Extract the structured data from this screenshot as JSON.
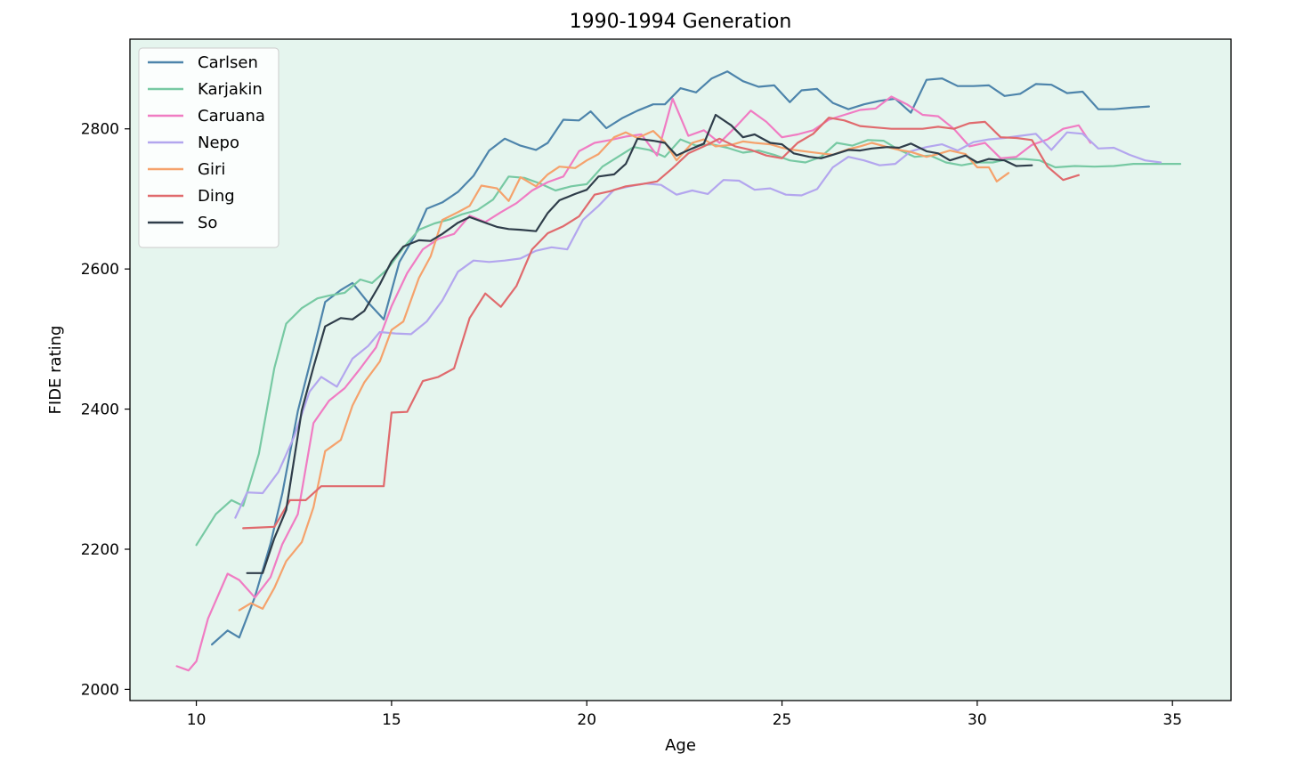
{
  "chart_data": {
    "type": "line",
    "title": "1990-1994 Generation",
    "xlabel": "Age",
    "ylabel": "FIDE rating",
    "xlim": [
      8.3,
      36.5
    ],
    "ylim": [
      1984,
      2928
    ],
    "xticks": [
      10,
      15,
      20,
      25,
      30,
      35
    ],
    "yticks": [
      2000,
      2200,
      2400,
      2600,
      2800
    ],
    "grid": false,
    "legend": "top-left",
    "plot_background": "#e5f5ee",
    "series": [
      {
        "name": "Carlsen",
        "color": "#4d84ab",
        "x": [
          10.4,
          10.8,
          11.1,
          11.5,
          11.9,
          12.2,
          12.6,
          13.0,
          13.3,
          13.7,
          14.0,
          14.4,
          14.8,
          15.2,
          15.6,
          15.9,
          16.3,
          16.7,
          17.1,
          17.5,
          17.9,
          18.3,
          18.7,
          19.0,
          19.4,
          19.8,
          20.1,
          20.5,
          20.9,
          21.3,
          21.7,
          22.0,
          22.4,
          22.8,
          23.2,
          23.6,
          24.0,
          24.4,
          24.8,
          25.2,
          25.5,
          25.9,
          26.3,
          26.7,
          27.1,
          27.5,
          27.9,
          28.3,
          28.7,
          29.1,
          29.5,
          29.9,
          30.3,
          30.7,
          31.1,
          31.5,
          31.9,
          32.3,
          32.7,
          33.1,
          33.5,
          33.9,
          34.4
        ],
        "y": [
          2064,
          2084,
          2074,
          2132,
          2208,
          2279,
          2397,
          2485,
          2553,
          2570,
          2580,
          2552,
          2528,
          2610,
          2648,
          2686,
          2695,
          2710,
          2733,
          2769,
          2786,
          2776,
          2770,
          2780,
          2813,
          2812,
          2825,
          2801,
          2815,
          2826,
          2835,
          2835,
          2858,
          2852,
          2872,
          2882,
          2868,
          2860,
          2862,
          2838,
          2855,
          2857,
          2837,
          2828,
          2835,
          2840,
          2843,
          2823,
          2870,
          2872,
          2861,
          2861,
          2862,
          2847,
          2850,
          2864,
          2863,
          2851,
          2853,
          2828,
          2828,
          2830,
          2832
        ]
      },
      {
        "name": "Karjakin",
        "color": "#77c9a3",
        "x": [
          10.0,
          10.5,
          10.9,
          11.2,
          11.6,
          12.0,
          12.3,
          12.7,
          13.1,
          13.4,
          13.8,
          14.2,
          14.5,
          14.9,
          15.3,
          15.7,
          16.1,
          16.5,
          16.8,
          17.2,
          17.6,
          18.0,
          18.4,
          18.8,
          19.2,
          19.6,
          20.0,
          20.4,
          20.8,
          21.2,
          21.6,
          22.0,
          22.4,
          22.8,
          23.2,
          23.6,
          24.0,
          24.4,
          24.8,
          25.2,
          25.6,
          26.0,
          26.4,
          26.8,
          27.2,
          27.6,
          28.0,
          28.4,
          28.8,
          29.2,
          29.6,
          30.0,
          30.4,
          30.8,
          31.2,
          31.6,
          32.0,
          32.5,
          33.0,
          33.5,
          34.0,
          34.5,
          35.2
        ],
        "y": [
          2206,
          2250,
          2270,
          2262,
          2336,
          2459,
          2522,
          2544,
          2558,
          2562,
          2566,
          2585,
          2580,
          2600,
          2630,
          2656,
          2665,
          2671,
          2678,
          2684,
          2699,
          2732,
          2730,
          2722,
          2712,
          2718,
          2721,
          2746,
          2760,
          2774,
          2770,
          2760,
          2785,
          2776,
          2778,
          2773,
          2766,
          2769,
          2763,
          2755,
          2752,
          2760,
          2780,
          2776,
          2784,
          2783,
          2770,
          2760,
          2762,
          2752,
          2748,
          2752,
          2752,
          2757,
          2757,
          2755,
          2745,
          2747,
          2746,
          2747,
          2750,
          2750,
          2750
        ]
      },
      {
        "name": "Caruana",
        "color": "#f07cc3",
        "x": [
          9.5,
          9.8,
          10.0,
          10.3,
          10.8,
          11.1,
          11.5,
          11.9,
          12.2,
          12.6,
          13.0,
          13.4,
          13.8,
          14.2,
          14.6,
          15.0,
          15.4,
          15.8,
          16.2,
          16.6,
          17.0,
          17.4,
          17.8,
          18.2,
          18.6,
          19.0,
          19.4,
          19.8,
          20.2,
          20.6,
          21.0,
          21.4,
          21.8,
          22.2,
          22.6,
          23.0,
          23.4,
          23.8,
          24.2,
          24.6,
          25.0,
          25.4,
          25.8,
          26.2,
          26.6,
          27.0,
          27.4,
          27.8,
          28.2,
          28.6,
          29.0,
          29.4,
          29.8,
          30.2,
          30.6,
          31.0,
          31.4,
          31.8,
          32.2,
          32.6,
          32.9
        ],
        "y": [
          2033,
          2027,
          2040,
          2101,
          2165,
          2156,
          2131,
          2160,
          2207,
          2250,
          2380,
          2412,
          2430,
          2458,
          2488,
          2547,
          2594,
          2628,
          2643,
          2650,
          2676,
          2667,
          2681,
          2694,
          2712,
          2724,
          2732,
          2768,
          2780,
          2784,
          2789,
          2792,
          2762,
          2843,
          2790,
          2798,
          2780,
          2802,
          2826,
          2810,
          2788,
          2792,
          2798,
          2813,
          2820,
          2827,
          2829,
          2846,
          2835,
          2820,
          2818,
          2800,
          2775,
          2780,
          2758,
          2760,
          2777,
          2785,
          2800,
          2805,
          2780
        ]
      },
      {
        "name": "Nepo",
        "color": "#b3a6ee",
        "x": [
          11.0,
          11.3,
          11.7,
          12.1,
          12.5,
          12.9,
          13.2,
          13.6,
          14.0,
          14.4,
          14.7,
          15.1,
          15.5,
          15.9,
          16.3,
          16.7,
          17.1,
          17.5,
          17.9,
          18.3,
          18.7,
          19.1,
          19.5,
          19.9,
          20.3,
          20.7,
          21.1,
          21.5,
          21.9,
          22.3,
          22.7,
          23.1,
          23.5,
          23.9,
          24.3,
          24.7,
          25.1,
          25.5,
          25.9,
          26.3,
          26.7,
          27.1,
          27.5,
          27.9,
          28.3,
          28.7,
          29.1,
          29.5,
          29.9,
          30.3,
          30.7,
          31.1,
          31.5,
          31.9,
          32.3,
          32.7,
          33.1,
          33.5,
          33.9,
          34.3,
          34.7
        ],
        "y": [
          2245,
          2281,
          2280,
          2310,
          2360,
          2425,
          2446,
          2432,
          2472,
          2490,
          2510,
          2508,
          2507,
          2525,
          2555,
          2596,
          2612,
          2610,
          2612,
          2615,
          2626,
          2631,
          2628,
          2670,
          2690,
          2713,
          2718,
          2722,
          2720,
          2706,
          2712,
          2707,
          2727,
          2726,
          2713,
          2715,
          2706,
          2705,
          2714,
          2745,
          2760,
          2755,
          2748,
          2750,
          2768,
          2774,
          2778,
          2769,
          2781,
          2785,
          2787,
          2790,
          2793,
          2770,
          2795,
          2793,
          2772,
          2773,
          2763,
          2755,
          2752
        ]
      },
      {
        "name": "Giri",
        "color": "#f5a26c",
        "x": [
          11.1,
          11.4,
          11.7,
          12.0,
          12.3,
          12.7,
          13.0,
          13.3,
          13.7,
          14.0,
          14.3,
          14.7,
          15.0,
          15.3,
          15.7,
          16.0,
          16.3,
          16.7,
          17.0,
          17.3,
          17.7,
          18.0,
          18.3,
          18.7,
          19.0,
          19.3,
          19.7,
          20.0,
          20.3,
          20.7,
          21.0,
          21.3,
          21.7,
          22.0,
          22.3,
          22.7,
          23.0,
          23.3,
          23.7,
          24.0,
          24.3,
          24.7,
          25.0,
          25.3,
          25.7,
          26.0,
          26.3,
          26.7,
          27.0,
          27.3,
          27.7,
          28.0,
          28.3,
          28.7,
          29.0,
          29.3,
          29.7,
          30.0,
          30.3,
          30.5,
          30.8
        ],
        "y": [
          2113,
          2123,
          2115,
          2145,
          2183,
          2210,
          2260,
          2340,
          2356,
          2405,
          2438,
          2468,
          2513,
          2525,
          2587,
          2618,
          2670,
          2681,
          2690,
          2719,
          2715,
          2697,
          2731,
          2718,
          2735,
          2746,
          2744,
          2755,
          2764,
          2788,
          2795,
          2787,
          2797,
          2781,
          2755,
          2780,
          2785,
          2775,
          2777,
          2782,
          2780,
          2778,
          2773,
          2770,
          2767,
          2765,
          2763,
          2771,
          2775,
          2780,
          2774,
          2770,
          2767,
          2760,
          2764,
          2769,
          2764,
          2745,
          2745,
          2725,
          2737
        ]
      },
      {
        "name": "Ding",
        "color": "#e06a6d",
        "x": [
          11.2,
          11.6,
          12.0,
          12.4,
          12.8,
          13.2,
          13.6,
          14.0,
          14.4,
          14.8,
          15.0,
          15.4,
          15.8,
          16.2,
          16.6,
          17.0,
          17.4,
          17.8,
          18.2,
          18.6,
          19.0,
          19.4,
          19.8,
          20.2,
          20.6,
          21.0,
          21.4,
          21.8,
          22.2,
          22.6,
          23.0,
          23.4,
          23.8,
          24.2,
          24.6,
          25.0,
          25.4,
          25.8,
          26.2,
          26.6,
          27.0,
          27.4,
          27.8,
          28.2,
          28.6,
          29.0,
          29.4,
          29.8,
          30.2,
          30.6,
          31.0,
          31.4,
          31.8,
          32.2,
          32.6
        ],
        "y": [
          2230,
          2231,
          2232,
          2270,
          2270,
          2290,
          2290,
          2290,
          2290,
          2290,
          2395,
          2396,
          2440,
          2446,
          2458,
          2530,
          2565,
          2546,
          2576,
          2628,
          2651,
          2661,
          2675,
          2706,
          2711,
          2718,
          2721,
          2725,
          2744,
          2765,
          2775,
          2786,
          2775,
          2770,
          2762,
          2758,
          2780,
          2793,
          2816,
          2812,
          2804,
          2802,
          2800,
          2800,
          2800,
          2803,
          2800,
          2808,
          2810,
          2788,
          2787,
          2784,
          2746,
          2727,
          2734
        ]
      },
      {
        "name": "So",
        "color": "#2f3d4a",
        "x": [
          11.3,
          11.7,
          12.0,
          12.3,
          12.7,
          13.0,
          13.3,
          13.7,
          14.0,
          14.3,
          14.7,
          15.0,
          15.3,
          15.7,
          16.0,
          16.3,
          16.7,
          17.0,
          17.3,
          17.7,
          18.0,
          18.3,
          18.7,
          19.0,
          19.3,
          19.7,
          20.0,
          20.3,
          20.7,
          21.0,
          21.3,
          21.7,
          22.0,
          22.3,
          22.7,
          23.0,
          23.3,
          23.7,
          24.0,
          24.3,
          24.7,
          25.0,
          25.3,
          25.7,
          26.0,
          26.3,
          26.7,
          27.0,
          27.3,
          27.7,
          28.0,
          28.3,
          28.7,
          29.0,
          29.3,
          29.7,
          30.0,
          30.3,
          30.7,
          31.0,
          31.4
        ],
        "y": [
          2166,
          2166,
          2216,
          2256,
          2398,
          2460,
          2518,
          2530,
          2528,
          2540,
          2578,
          2611,
          2632,
          2641,
          2640,
          2650,
          2666,
          2674,
          2668,
          2660,
          2657,
          2656,
          2654,
          2680,
          2698,
          2707,
          2713,
          2732,
          2735,
          2750,
          2786,
          2783,
          2780,
          2762,
          2772,
          2779,
          2820,
          2805,
          2788,
          2792,
          2780,
          2778,
          2765,
          2760,
          2758,
          2763,
          2770,
          2769,
          2772,
          2774,
          2773,
          2779,
          2768,
          2765,
          2755,
          2762,
          2752,
          2757,
          2755,
          2747,
          2748
        ]
      }
    ]
  }
}
